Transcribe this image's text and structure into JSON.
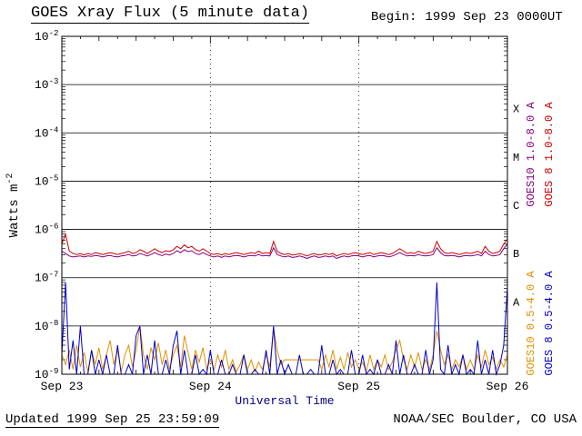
{
  "header": {
    "title": "GOES Xray Flux (5 minute data)",
    "begin_label": "Begin:",
    "begin_value": "1999 Sep 23 0000UT"
  },
  "footer": {
    "updated": "Updated 1999 Sep 25 23:59:09",
    "credit": "NOAA/SEC Boulder, CO USA"
  },
  "chart_data": {
    "type": "line",
    "title": "GOES Xray Flux (5 minute data)",
    "xlabel": "Universal Time",
    "xlabel_color": "#000080",
    "ylabel_base": "Watts m",
    "ylabel_exp": "-2",
    "xlim": [
      0,
      3
    ],
    "ylog_lim": [
      -9,
      -2
    ],
    "y_tick_exponents": [
      -2,
      -3,
      -4,
      -5,
      -6,
      -7,
      -8,
      -9
    ],
    "x_tick_labels": [
      "Sep 23",
      "Sep 24",
      "Sep 25",
      "Sep 26"
    ],
    "x_tick_positions": [
      0,
      1,
      2,
      3
    ],
    "flare_classes": [
      {
        "label": "X",
        "log_center": -3.5
      },
      {
        "label": "M",
        "log_center": -4.5
      },
      {
        "label": "C",
        "log_center": -5.5
      },
      {
        "label": "B",
        "log_center": -6.5
      },
      {
        "label": "A",
        "log_center": -7.5
      }
    ],
    "grid": {
      "h_lines_log": [
        -3,
        -4,
        -5,
        -6,
        -7,
        -8
      ],
      "v_dashed_x": [
        1,
        2
      ]
    },
    "series": [
      {
        "name": "GOES10 1.0-8.0 A",
        "color": "#800080",
        "x_start": 0,
        "x_step": 0.025,
        "log_flux": [
          -6.45,
          -6.5,
          -6.55,
          -6.57,
          -6.56,
          -6.55,
          -6.57,
          -6.55,
          -6.56,
          -6.54,
          -6.55,
          -6.57,
          -6.55,
          -6.54,
          -6.56,
          -6.57,
          -6.55,
          -6.54,
          -6.52,
          -6.55,
          -6.54,
          -6.5,
          -6.52,
          -6.55,
          -6.52,
          -6.48,
          -6.52,
          -6.54,
          -6.51,
          -6.53,
          -6.5,
          -6.44,
          -6.48,
          -6.42,
          -6.46,
          -6.44,
          -6.5,
          -6.52,
          -6.48,
          -6.52,
          -6.55,
          -6.57,
          -6.55,
          -6.58,
          -6.55,
          -6.57,
          -6.55,
          -6.54,
          -6.55,
          -6.57,
          -6.55,
          -6.54,
          -6.55,
          -6.52,
          -6.55,
          -6.54,
          -6.55,
          -6.38,
          -6.52,
          -6.55,
          -6.57,
          -6.55,
          -6.58,
          -6.57,
          -6.55,
          -6.57,
          -6.6,
          -6.57,
          -6.55,
          -6.58,
          -6.57,
          -6.55,
          -6.57,
          -6.55,
          -6.6,
          -6.57,
          -6.55,
          -6.57,
          -6.55,
          -6.54,
          -6.55,
          -6.57,
          -6.55,
          -6.54,
          -6.57,
          -6.55,
          -6.54,
          -6.55,
          -6.57,
          -6.55,
          -6.52,
          -6.48,
          -6.52,
          -6.55,
          -6.54,
          -6.55,
          -6.52,
          -6.54,
          -6.55,
          -6.54,
          -6.52,
          -6.38,
          -6.48,
          -6.54,
          -6.55,
          -6.54,
          -6.55,
          -6.57,
          -6.55,
          -6.54,
          -6.55,
          -6.54,
          -6.52,
          -6.55,
          -6.45,
          -6.52,
          -6.55,
          -6.54,
          -6.52,
          -6.4,
          -6.3
        ]
      },
      {
        "name": "GOES 8 1.0-8.0 A",
        "color": "#cc0000",
        "x_start": 0,
        "x_step": 0.025,
        "log_flux": [
          -6.3,
          -6.1,
          -6.45,
          -6.5,
          -6.52,
          -6.5,
          -6.53,
          -6.5,
          -6.52,
          -6.48,
          -6.5,
          -6.52,
          -6.5,
          -6.48,
          -6.5,
          -6.52,
          -6.5,
          -6.48,
          -6.45,
          -6.5,
          -6.48,
          -6.42,
          -6.45,
          -6.5,
          -6.45,
          -6.4,
          -6.45,
          -6.48,
          -6.44,
          -6.46,
          -6.42,
          -6.35,
          -6.4,
          -6.32,
          -6.38,
          -6.35,
          -6.42,
          -6.45,
          -6.4,
          -6.45,
          -6.5,
          -6.52,
          -6.5,
          -6.53,
          -6.5,
          -6.52,
          -6.5,
          -6.48,
          -6.5,
          -6.52,
          -6.5,
          -6.48,
          -6.5,
          -6.45,
          -6.5,
          -6.48,
          -6.5,
          -6.25,
          -6.45,
          -6.5,
          -6.52,
          -6.5,
          -6.53,
          -6.52,
          -6.5,
          -6.52,
          -6.55,
          -6.52,
          -6.5,
          -6.53,
          -6.52,
          -6.5,
          -6.52,
          -6.5,
          -6.55,
          -6.52,
          -6.5,
          -6.52,
          -6.5,
          -6.48,
          -6.5,
          -6.52,
          -6.5,
          -6.48,
          -6.52,
          -6.5,
          -6.48,
          -6.5,
          -6.52,
          -6.5,
          -6.45,
          -6.4,
          -6.45,
          -6.5,
          -6.48,
          -6.5,
          -6.45,
          -6.48,
          -6.5,
          -6.48,
          -6.45,
          -6.25,
          -6.4,
          -6.48,
          -6.5,
          -6.48,
          -6.5,
          -6.52,
          -6.5,
          -6.48,
          -6.5,
          -6.48,
          -6.45,
          -6.5,
          -6.35,
          -6.45,
          -6.5,
          -6.48,
          -6.45,
          -6.3,
          -6.2
        ]
      },
      {
        "name": "GOES10 0.5-4.0 A",
        "color": "#e09000",
        "x_start": 0,
        "x_step": 0.025,
        "log_flux": [
          -8.6,
          -8.8,
          -8.5,
          -8.9,
          -8.4,
          -8.85,
          -8.55,
          -8.95,
          -8.5,
          -8.8,
          -8.45,
          -8.9,
          -8.6,
          -8.3,
          -8.8,
          -8.5,
          -8.95,
          -8.6,
          -8.4,
          -8.85,
          -8.5,
          -8.0,
          -8.6,
          -8.9,
          -8.45,
          -8.7,
          -8.35,
          -8.8,
          -8.5,
          -8.9,
          -8.6,
          -8.4,
          -8.85,
          -8.2,
          -8.55,
          -8.9,
          -8.5,
          -8.75,
          -8.45,
          -8.9,
          -8.7,
          -8.9,
          -8.6,
          -8.85,
          -8.5,
          -8.9,
          -8.7,
          -8.95,
          -8.8,
          -8.6,
          -8.9,
          -8.7,
          -8.95,
          -8.75,
          -8.9,
          -8.6,
          -8.85,
          -8.05,
          -8.5,
          -8.8,
          -8.7,
          -8.7,
          -8.7,
          -8.7,
          -8.7,
          -8.7,
          -8.7,
          -8.7,
          -8.7,
          -8.7,
          -8.9,
          -8.6,
          -8.85,
          -8.5,
          -8.9,
          -8.65,
          -8.9,
          -8.55,
          -8.85,
          -8.7,
          -8.9,
          -8.75,
          -8.95,
          -8.6,
          -8.9,
          -8.7,
          -8.85,
          -8.6,
          -8.9,
          -8.75,
          -8.5,
          -8.3,
          -8.7,
          -8.9,
          -8.6,
          -8.85,
          -8.55,
          -8.9,
          -8.7,
          -8.9,
          -8.6,
          -8.1,
          -8.5,
          -8.8,
          -8.6,
          -8.9,
          -8.7,
          -8.85,
          -8.6,
          -8.9,
          -8.7,
          -8.9,
          -8.6,
          -8.85,
          -8.5,
          -8.8,
          -8.65,
          -8.9,
          -8.7,
          -8.85,
          -8.6
        ]
      },
      {
        "name": "GOES 8 0.5-4.0 A",
        "color": "#0000cc",
        "x_start": 0,
        "x_step": 0.025,
        "log_flux": [
          -8.6,
          -7.1,
          -8.9,
          -8.3,
          -9.1,
          -8.0,
          -9.1,
          -9.1,
          -8.5,
          -9.1,
          -8.7,
          -9.1,
          -8.6,
          -9.1,
          -9.1,
          -8.4,
          -9.1,
          -9.1,
          -8.8,
          -9.1,
          -8.2,
          -8.0,
          -9.1,
          -8.6,
          -9.1,
          -8.3,
          -9.1,
          -9.1,
          -8.7,
          -9.1,
          -8.4,
          -8.1,
          -9.1,
          -8.5,
          -9.1,
          -9.1,
          -8.6,
          -9.1,
          -8.9,
          -9.1,
          -8.5,
          -9.1,
          -9.1,
          -8.7,
          -9.1,
          -9.1,
          -8.8,
          -9.1,
          -9.1,
          -8.6,
          -9.1,
          -9.1,
          -8.9,
          -9.1,
          -9.1,
          -8.5,
          -9.1,
          -8.0,
          -9.1,
          -8.7,
          -9.1,
          -8.8,
          -9.1,
          -9.1,
          -8.6,
          -9.1,
          -9.1,
          -8.9,
          -9.1,
          -9.1,
          -8.4,
          -9.1,
          -9.1,
          -8.7,
          -9.1,
          -8.9,
          -9.1,
          -9.1,
          -8.5,
          -9.1,
          -9.1,
          -8.6,
          -9.1,
          -8.9,
          -9.1,
          -8.7,
          -9.1,
          -9.1,
          -8.8,
          -9.1,
          -8.3,
          -9.1,
          -8.6,
          -9.1,
          -9.1,
          -8.8,
          -9.1,
          -9.1,
          -8.5,
          -9.1,
          -8.7,
          -7.1,
          -8.9,
          -9.1,
          -8.4,
          -9.1,
          -8.8,
          -9.1,
          -8.6,
          -9.1,
          -8.9,
          -9.1,
          -8.3,
          -9.1,
          -8.7,
          -9.1,
          -8.5,
          -9.1,
          -8.8,
          -8.4,
          -7.2
        ]
      }
    ]
  }
}
